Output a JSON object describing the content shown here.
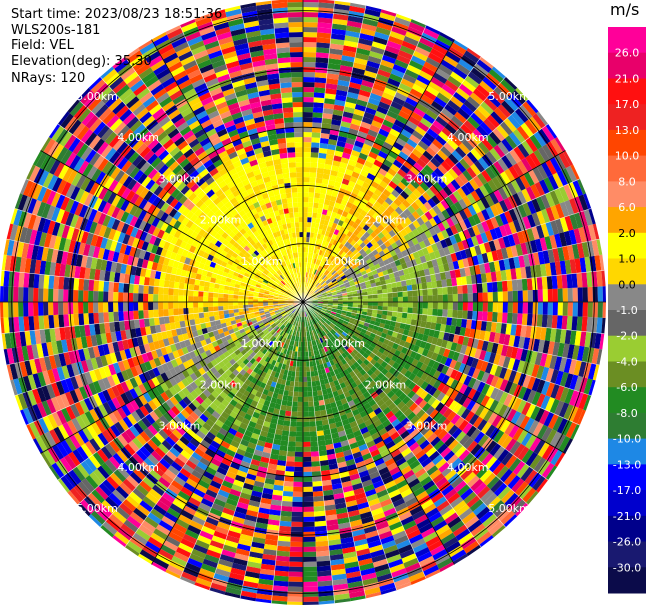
{
  "header": {
    "start_time": "Start time: 2023/08/23 18:51:36",
    "instrument": "WLS200s-181",
    "field": "Field: VEL",
    "elevation": "Elevation(deg): 35.30",
    "nrays": "NRays: 120"
  },
  "colorbar": {
    "unit": "m/s",
    "tick_labels": [
      "26.0",
      "21.0",
      "17.0",
      "13.0",
      "10.0",
      "8.0",
      "6.0",
      "2.0",
      "1.0",
      "0.0",
      "-1.0",
      "-2.0",
      "-4.0",
      "-6.0",
      "-8.0",
      "-10.0",
      "-13.0",
      "-17.0",
      "-21.0",
      "-26.0",
      "-30.0"
    ],
    "colors": [
      "#ff0099",
      "#e8006a",
      "#ff1010",
      "#ee2222",
      "#ff4500",
      "#ff6a3a",
      "#ff8c66",
      "#ffa500",
      "#ffff00",
      "#ffd700",
      "#888888",
      "#666666",
      "#9acd32",
      "#6b8e23",
      "#228b22",
      "#2e7d32",
      "#1e88e5",
      "#0000ff",
      "#0000cd",
      "#00008b",
      "#191970",
      "#0b0b4a"
    ]
  },
  "chart_data": {
    "type": "ppi",
    "field": "VEL",
    "units": "m/s",
    "nrays": 120,
    "elevation_deg": 35.3,
    "value_range": [
      -30.0,
      26.0
    ],
    "range_ring_labels": [
      "1.00km",
      "2.00km",
      "3.00km",
      "4.00km",
      "5.00km"
    ],
    "range_rings_km": [
      1,
      2,
      3,
      4,
      5
    ],
    "max_range_km": 5.2,
    "grid": true,
    "pattern": {
      "near_field_dominant": "positive (yellow/orange) toward north-west, negative (green) toward south",
      "far_field": "noise (random colours) beyond about 2.4 km"
    }
  }
}
